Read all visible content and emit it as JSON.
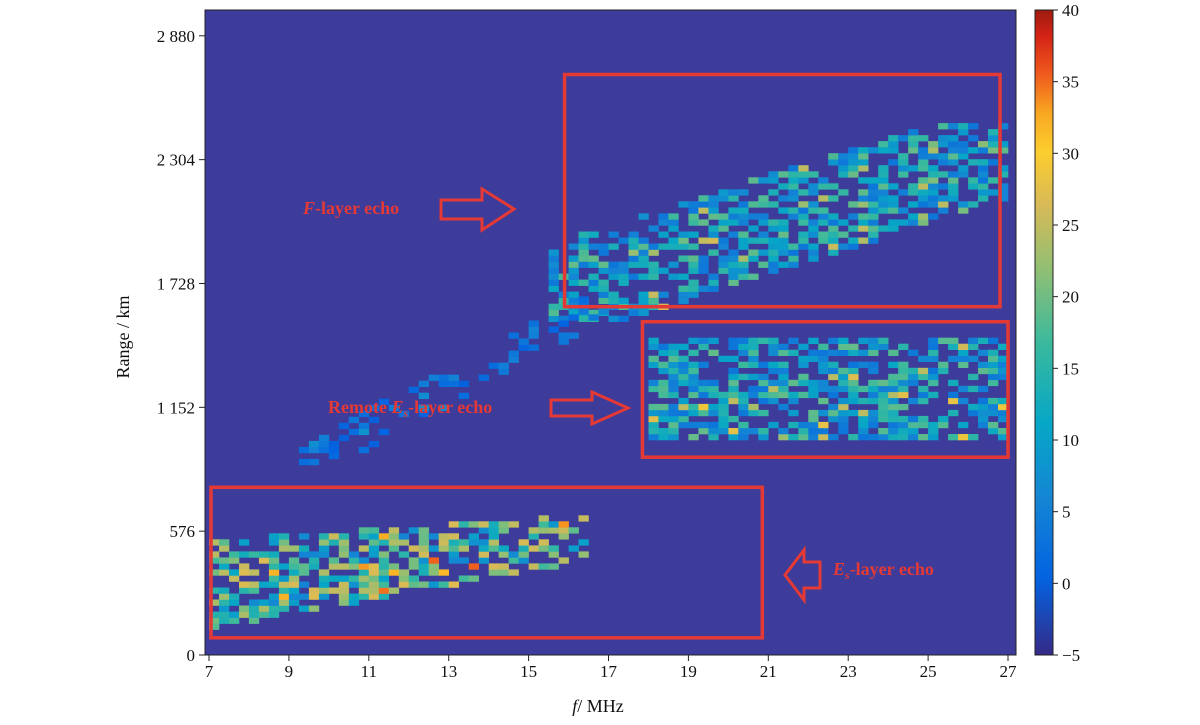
{
  "chart_data": {
    "type": "heatmap",
    "title": "",
    "xlabel": "/ MHz",
    "xlabel_var": "f",
    "ylabel": "Range / km",
    "xlim": [
      6.9,
      27.2
    ],
    "ylim": [
      0,
      3000
    ],
    "x_ticks": [
      7,
      9,
      11,
      13,
      15,
      17,
      19,
      21,
      23,
      25,
      27
    ],
    "x_tick_labels": [
      "7",
      "9",
      "11",
      "13",
      "15",
      "17",
      "19",
      "21",
      "23",
      "25",
      "27"
    ],
    "y_ticks": [
      0,
      576,
      1152,
      1728,
      2304,
      2880
    ],
    "y_tick_labels": [
      "0",
      "576",
      "1 152",
      "1 728",
      "2 304",
      "2 880"
    ],
    "colorbar": {
      "range": [
        -5,
        40
      ],
      "ticks": [
        -5,
        0,
        5,
        10,
        15,
        20,
        25,
        30,
        35,
        40
      ],
      "tick_labels": [
        "−5",
        "0",
        "5",
        "10",
        "15",
        "20",
        "25",
        "30",
        "35",
        "40"
      ],
      "colormap": "parula"
    },
    "background_value": 0,
    "echo_regions": [
      {
        "name": "Es-layer echo",
        "f_range": [
          7.0,
          16.5
        ],
        "range_km": [
          90,
          650
        ],
        "typical_value": 18,
        "peak_value": 33
      },
      {
        "name": "Remote Es-layer echo",
        "f_range": [
          18.0,
          27.0
        ],
        "range_km": [
          1000,
          1450
        ],
        "typical_value": 14,
        "peak_value": 24
      },
      {
        "name": "F-layer echo",
        "f_range": [
          15.5,
          27.0
        ],
        "range_km": [
          1550,
          2450
        ],
        "typical_value": 14,
        "peak_value": 22
      },
      {
        "name": "Faint oblique trace",
        "f_range": [
          9.0,
          17.0
        ],
        "range_km": [
          800,
          1750
        ],
        "typical_value": 8,
        "peak_value": 12
      }
    ],
    "boxes": [
      {
        "id": "f-layer",
        "f_range": [
          15.9,
          26.8
        ],
        "range_km": [
          1620,
          2700
        ]
      },
      {
        "id": "remote-es",
        "f_range": [
          17.85,
          27.0
        ],
        "range_km": [
          920,
          1550
        ]
      },
      {
        "id": "es-layer",
        "f_range": [
          7.05,
          20.85
        ],
        "range_km": [
          80,
          780
        ]
      }
    ],
    "annotations": [
      {
        "id": "f-layer",
        "italic_prefix": "F",
        "subscript": "",
        "text": "-layer echo",
        "arrow_dir": "right"
      },
      {
        "id": "remote-es",
        "prefix": "Remote ",
        "italic_prefix": "E",
        "subscript": "s",
        "text": "-layer echo",
        "arrow_dir": "right"
      },
      {
        "id": "es-layer",
        "italic_prefix": "E",
        "subscript": "s",
        "text": "-layer echo",
        "arrow_dir": "left"
      }
    ],
    "colors": {
      "background": "#3e3c9a",
      "annotation_red": "#e53935"
    }
  }
}
